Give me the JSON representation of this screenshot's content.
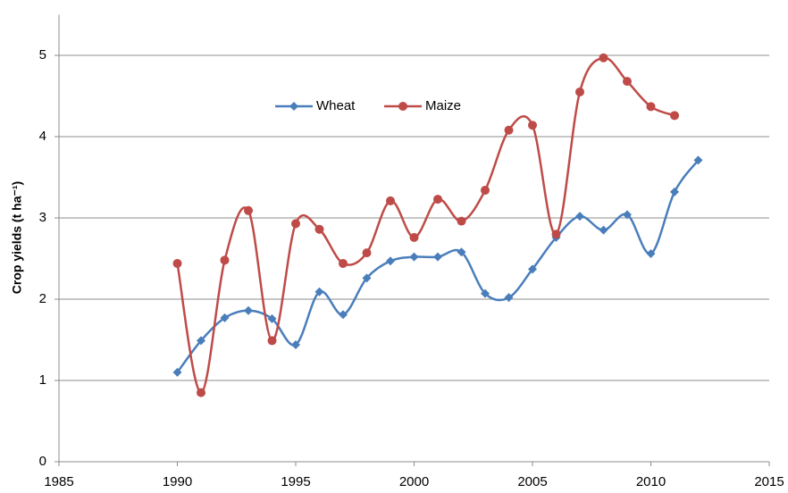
{
  "chart_data": {
    "type": "line",
    "y_label": "Crop yields (t ha⁻¹)",
    "xlim": [
      1985,
      2015
    ],
    "xticks": [
      1985,
      1990,
      1995,
      2000,
      2005,
      2010,
      2015
    ],
    "ylim": [
      0,
      5.5
    ],
    "yticks": [
      0,
      1,
      2,
      3,
      4,
      5
    ],
    "grid": true,
    "smooth": true,
    "legend": "top",
    "series": [
      {
        "name": "Wheat",
        "color": "#4a7ebb",
        "marker": "diamond",
        "x": [
          1990,
          1991,
          1992,
          1993,
          1994,
          1995,
          1996,
          1997,
          1998,
          1999,
          2000,
          2001,
          2002,
          2003,
          2004,
          2005,
          2006,
          2007,
          2008,
          2009,
          2010,
          2011,
          2012
        ],
        "values": [
          1.1,
          1.49,
          1.77,
          1.86,
          1.76,
          1.44,
          2.09,
          1.81,
          2.26,
          2.47,
          2.52,
          2.52,
          2.58,
          2.07,
          2.02,
          2.37,
          2.76,
          3.02,
          2.85,
          3.04,
          2.56,
          3.32,
          3.71
        ]
      },
      {
        "name": "Maize",
        "color": "#be4b48",
        "marker": "circle",
        "x": [
          1990,
          1991,
          1992,
          1993,
          1994,
          1995,
          1996,
          1997,
          1998,
          1999,
          2000,
          2001,
          2002,
          2003,
          2004,
          2005,
          2006,
          2007,
          2008,
          2009,
          2010,
          2011
        ],
        "values": [
          2.44,
          0.85,
          2.48,
          3.09,
          1.49,
          2.93,
          2.86,
          2.44,
          2.57,
          3.21,
          2.76,
          3.23,
          2.96,
          3.34,
          4.08,
          4.14,
          2.8,
          4.55,
          4.97,
          4.68,
          4.37,
          4.26
        ]
      }
    ]
  }
}
